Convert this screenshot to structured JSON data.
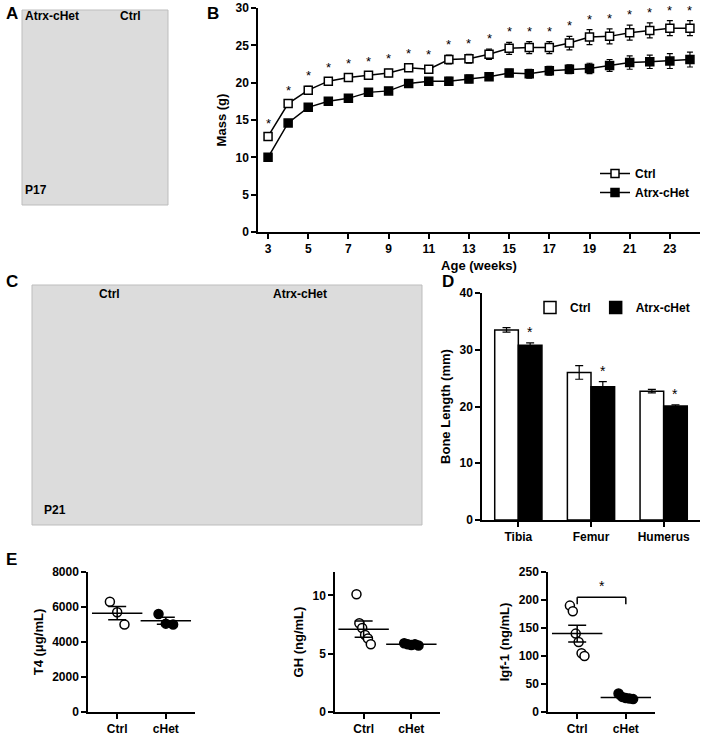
{
  "images": [
    {
      "panel": "A",
      "labels": [
        "Atrx-cHet",
        "Ctrl",
        "P17"
      ]
    },
    {
      "panel": "C",
      "labels": [
        "Ctrl",
        "Atrx-cHet",
        "P21"
      ]
    }
  ],
  "chart_data": [
    {
      "panel": "B",
      "type": "line",
      "x": [
        3,
        4,
        5,
        6,
        7,
        8,
        9,
        10,
        11,
        12,
        13,
        14,
        15,
        16,
        17,
        18,
        19,
        20,
        21,
        22,
        23,
        24
      ],
      "xlabel": "Age (weeks)",
      "ylabel": "Mass (g)",
      "xlim": [
        2.5,
        24.5
      ],
      "xticks": [
        3,
        5,
        7,
        9,
        11,
        13,
        15,
        17,
        19,
        21,
        23
      ],
      "ylim": [
        0,
        30
      ],
      "yticks": [
        0,
        5,
        10,
        15,
        20,
        25,
        30
      ],
      "legend": "lower right",
      "series": [
        {
          "name": "Ctrl",
          "color": "#000000",
          "marker": "open square",
          "values": [
            12.8,
            17.2,
            19.0,
            20.2,
            20.7,
            21.0,
            21.3,
            22.0,
            21.8,
            23.1,
            23.2,
            23.8,
            24.6,
            24.7,
            24.7,
            25.3,
            26.1,
            26.2,
            26.7,
            27.0,
            27.3,
            27.3
          ],
          "errors": [
            0.3,
            0.4,
            0.5,
            0.4,
            0.4,
            0.4,
            0.5,
            0.5,
            0.5,
            0.6,
            0.6,
            0.7,
            0.8,
            0.8,
            0.8,
            0.9,
            1.0,
            1.0,
            1.0,
            1.0,
            1.0,
            1.0
          ]
        },
        {
          "name": "Atrx-cHet",
          "color": "#000000",
          "marker": "square",
          "values": [
            10.0,
            14.6,
            16.7,
            17.5,
            17.9,
            18.7,
            18.9,
            19.9,
            20.2,
            20.2,
            20.5,
            20.8,
            21.3,
            21.2,
            21.6,
            21.8,
            21.9,
            22.3,
            22.7,
            22.8,
            22.9,
            23.1
          ],
          "errors": [
            0.3,
            0.3,
            0.3,
            0.4,
            0.4,
            0.4,
            0.4,
            0.4,
            0.4,
            0.5,
            0.5,
            0.5,
            0.5,
            0.6,
            0.6,
            0.6,
            0.7,
            0.8,
            0.9,
            0.9,
            1.0,
            1.0
          ]
        }
      ],
      "significance": [
        "*",
        "*",
        "*",
        "*",
        "*",
        "*",
        "*",
        "*",
        "*",
        "*",
        "*",
        "*",
        "*",
        "*",
        "*",
        "*",
        "*",
        "*",
        "*",
        "*",
        "*",
        "*"
      ]
    },
    {
      "panel": "D",
      "type": "bar",
      "categories": [
        "Tibia",
        "Femur",
        "Humerus"
      ],
      "ylabel": "Bone Length (mm)",
      "ylim": [
        0,
        40
      ],
      "yticks": [
        0,
        10,
        20,
        30,
        40
      ],
      "legend": "upper right",
      "series": [
        {
          "name": "Ctrl",
          "color": "#ffffff",
          "values": [
            33.5,
            26.0,
            22.7
          ],
          "errors": [
            0.4,
            1.2,
            0.3
          ]
        },
        {
          "name": "Atrx-cHet",
          "color": "#000000",
          "values": [
            30.8,
            23.5,
            20.1
          ],
          "errors": [
            0.4,
            0.9,
            0.2
          ],
          "significance": [
            "*",
            "*",
            "*"
          ]
        }
      ]
    },
    {
      "panel": "E",
      "type": "scatter",
      "categories": [
        "Ctrl",
        "cHet"
      ],
      "ylabel": "T4 (μg/mL)",
      "ylim": [
        0,
        8000
      ],
      "yticks": [
        0,
        2000,
        4000,
        6000,
        8000
      ],
      "groups": [
        {
          "color": "#000000",
          "marker": "open circle",
          "values": [
            6300,
            5700,
            5000
          ],
          "mean": 5650,
          "sem": 380
        },
        {
          "color": "#000000",
          "marker": "circle",
          "values": [
            5600,
            5050,
            5000
          ],
          "mean": 5220,
          "sem": 200
        }
      ]
    },
    {
      "type": "scatter",
      "categories": [
        "Ctrl",
        "cHet"
      ],
      "ylabel": "GH (ng/mL)",
      "ylim": [
        0,
        12
      ],
      "yticks": [
        0,
        5,
        10
      ],
      "groups": [
        {
          "color": "#000000",
          "marker": "open circle",
          "values": [
            10.1,
            7.6,
            7.2,
            6.6,
            6.3,
            5.8
          ],
          "mean": 7.1,
          "sem": 0.7
        },
        {
          "color": "#000000",
          "marker": "circle",
          "values": [
            5.9,
            5.8,
            5.75,
            5.8,
            5.7
          ],
          "mean": 5.8,
          "sem": 0.05
        }
      ]
    },
    {
      "type": "scatter",
      "categories": [
        "Ctrl",
        "cHet"
      ],
      "ylabel": "Igf-1 (ng/mL)",
      "ylim": [
        0,
        250
      ],
      "yticks": [
        0,
        50,
        100,
        150,
        200,
        250
      ],
      "groups": [
        {
          "color": "#000000",
          "marker": "open circle",
          "values": [
            190,
            180,
            140,
            125,
            105,
            100
          ],
          "mean": 140,
          "sem": 15
        },
        {
          "color": "#000000",
          "marker": "circle",
          "values": [
            33,
            27,
            25,
            24,
            23
          ],
          "mean": 26,
          "sem": 2
        }
      ],
      "comparisons": [
        {
          "between": [
            "Ctrl",
            "cHet"
          ],
          "label": "*"
        }
      ]
    }
  ]
}
